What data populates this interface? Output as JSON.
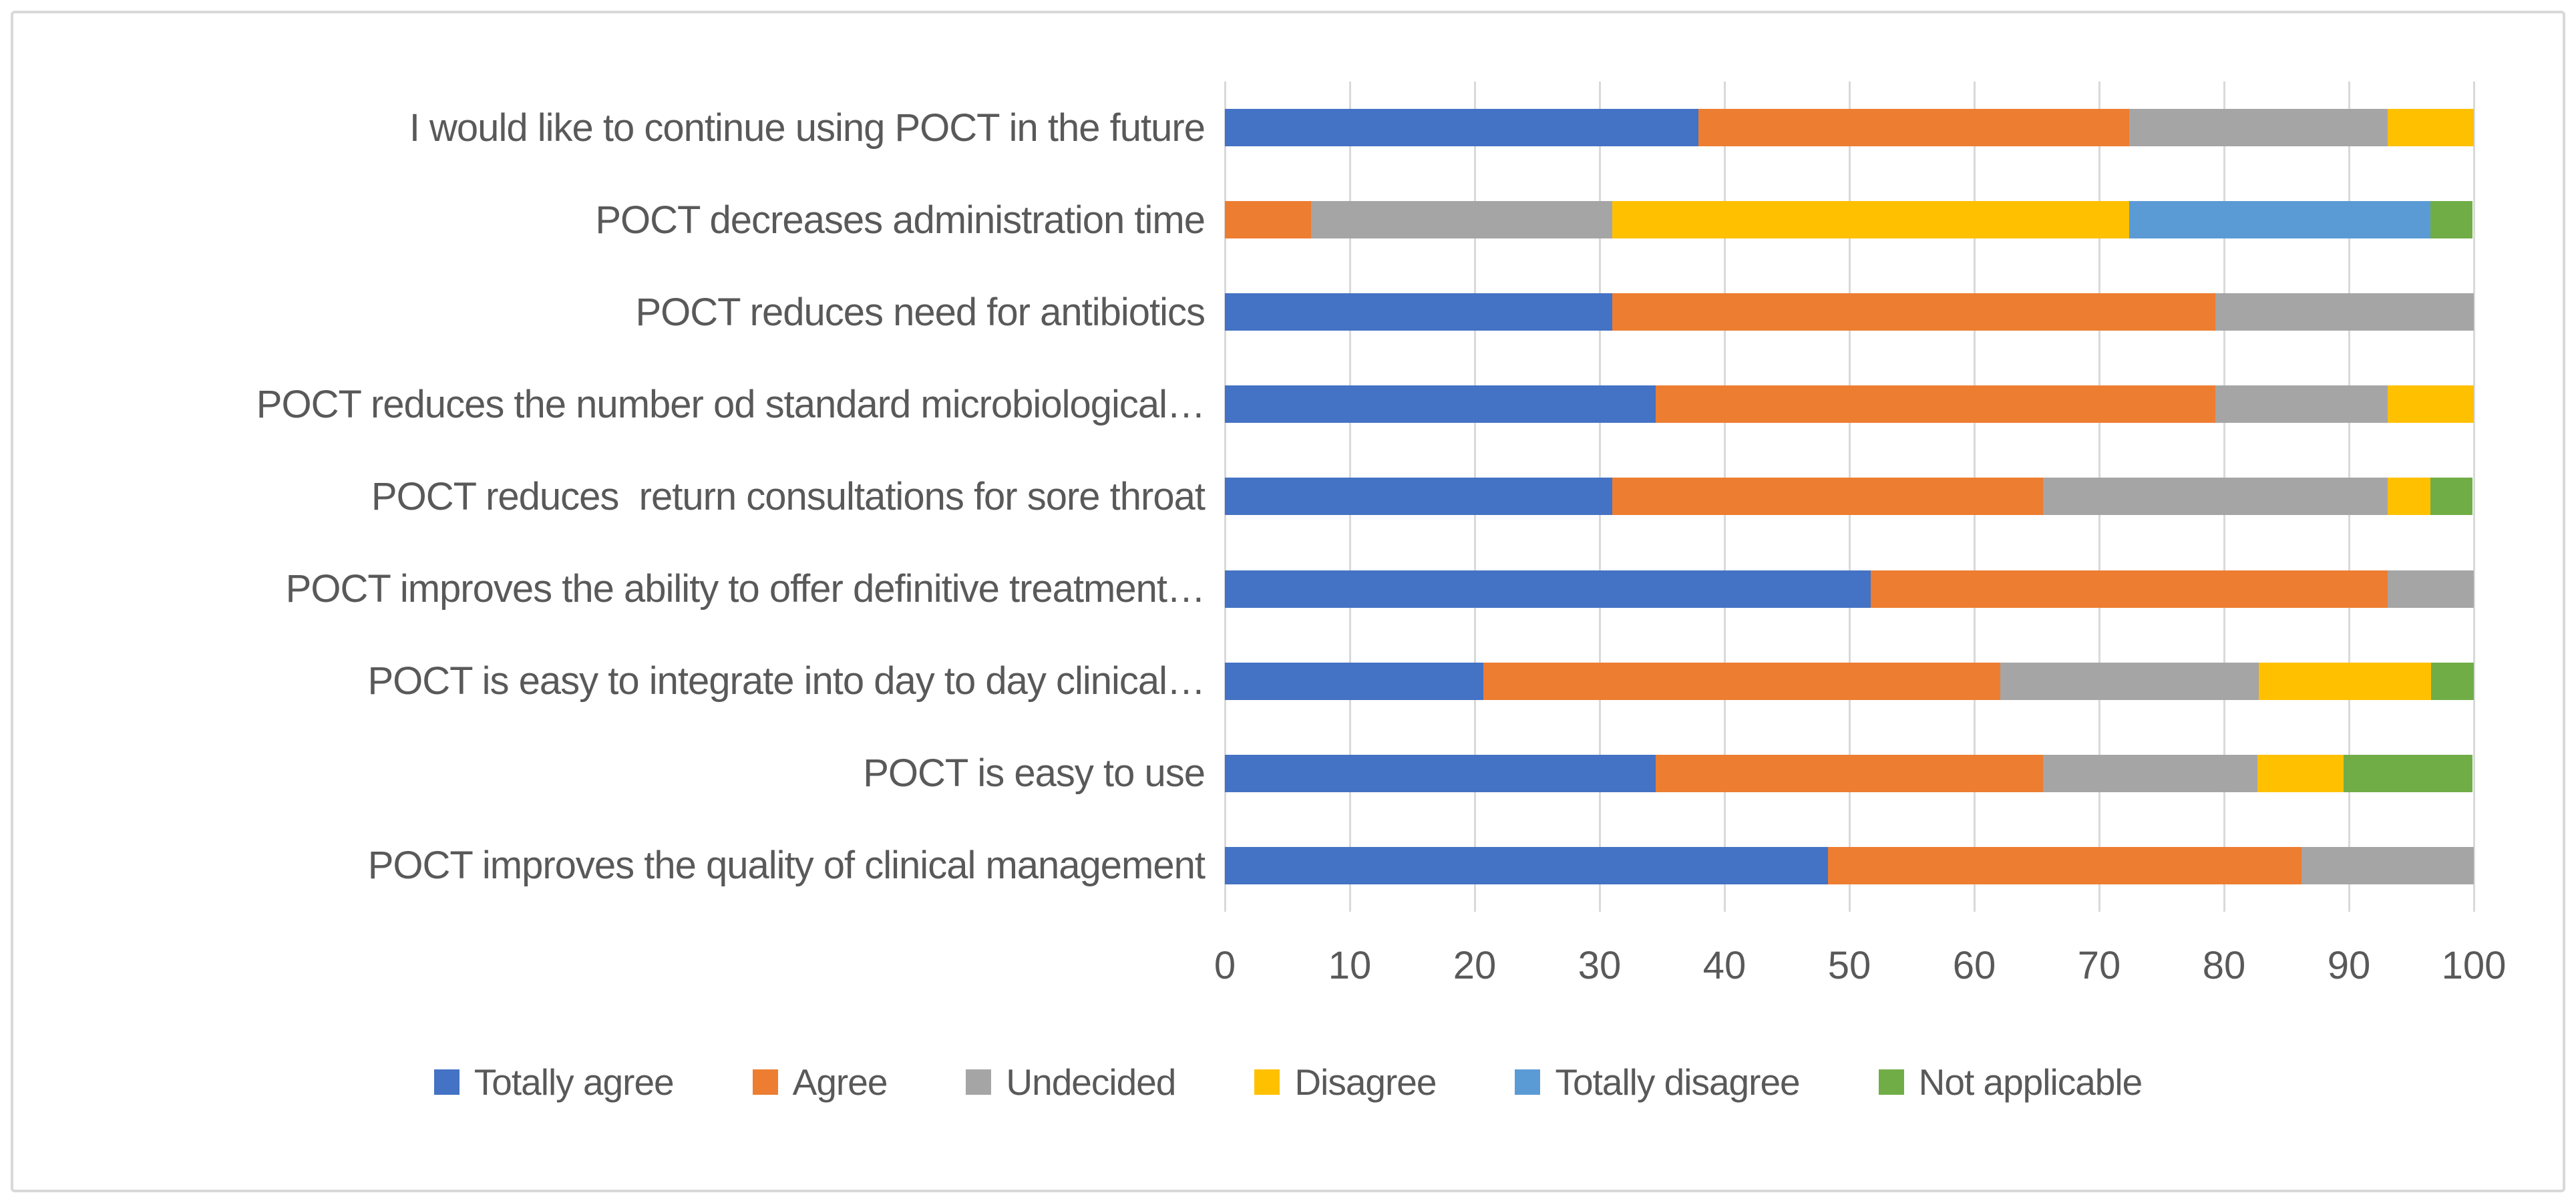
{
  "chart_data": {
    "type": "bar",
    "orientation": "horizontal",
    "stacked": true,
    "title": "",
    "xlabel": "",
    "ylabel": "",
    "grid": true,
    "legend_position": "bottom",
    "x_axis": {
      "min": 0,
      "max": 100,
      "tick_step": 10,
      "ticks": [
        "0",
        "10",
        "20",
        "30",
        "40",
        "50",
        "60",
        "70",
        "80",
        "90",
        "100"
      ]
    },
    "categories": [
      "I would like to continue using POCT in the future",
      "POCT decreases administration time",
      "POCT reduces need for antibiotics",
      "POCT reduces the number od standard microbiological…",
      "POCT reduces  return consultations for sore throat",
      "POCT improves the ability to offer definitive treatment…",
      "POCT is easy to integrate into day to day clinical…",
      "POCT is easy to use",
      "POCT improves the quality of clinical management"
    ],
    "series": [
      {
        "name": "Totally agree",
        "color": "#4472C4",
        "values": [
          37.9,
          0,
          31.0,
          34.5,
          31.0,
          51.7,
          20.7,
          34.5,
          48.3
        ]
      },
      {
        "name": "Agree",
        "color": "#ED7D31",
        "values": [
          34.5,
          6.9,
          48.3,
          44.8,
          34.5,
          41.4,
          41.4,
          31.0,
          37.9
        ]
      },
      {
        "name": "Undecided",
        "color": "#A5A5A5",
        "values": [
          20.7,
          24.1,
          20.7,
          13.8,
          27.6,
          6.9,
          20.7,
          17.2,
          13.8
        ]
      },
      {
        "name": "Disagree",
        "color": "#FFC000",
        "values": [
          6.9,
          41.4,
          0,
          6.9,
          3.4,
          0,
          13.8,
          6.9,
          0
        ]
      },
      {
        "name": "Totally disagree",
        "color": "#5B9BD5",
        "values": [
          0,
          24.1,
          0,
          0,
          0,
          0,
          0,
          0,
          0
        ]
      },
      {
        "name": "Not applicable",
        "color": "#70AD47",
        "values": [
          0,
          3.4,
          0,
          0,
          3.4,
          0,
          3.4,
          10.3,
          0
        ]
      }
    ],
    "colors": {
      "gridline": "#D9D9D9",
      "text": "#595959",
      "frame_border": "#D9D9D9",
      "background": "#FFFFFF"
    }
  }
}
